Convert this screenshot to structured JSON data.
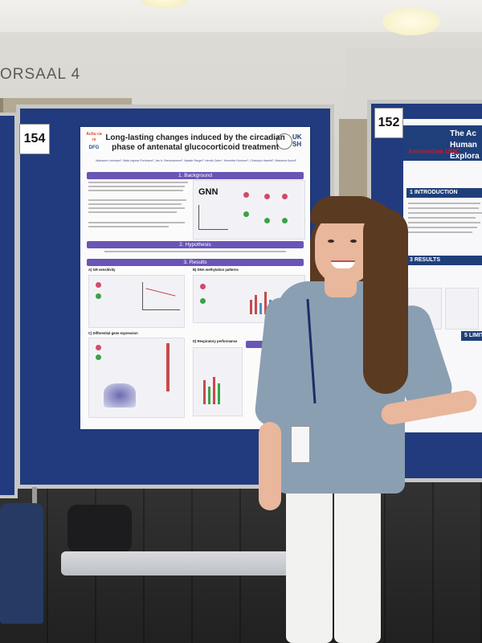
{
  "scene": {
    "room_sign": "ORSAAL 4"
  },
  "boards": {
    "main_number": "154",
    "right_number": "152"
  },
  "main_poster": {
    "logo_left": "Achu ca ro",
    "logo_dfg": "DFG",
    "logo_right": "UK SH",
    "title_line1": "Long-lasting changes induced by the circadian",
    "title_line2": "phase of antenatal glucocorticoid treatment",
    "authors": "Marianne Lehmann¹, Mats Ingmar Fortmann², Jan H. Bremnanmen³, Natalie Steger³, Henrik Oster⁴, Henriette Kirchner⁵, Christoph Haertel², Marianne Azzizi²",
    "sections": {
      "background": "1. Background",
      "hypothesis": "2. Hypothesis",
      "results": "3. Results",
      "conclusion": "4. Co"
    },
    "gnn_label": "GNN",
    "subsections": {
      "gr_sensitivity": "A) GR sensitivity",
      "dna_methylation": "B) DNA methylation patterns",
      "diff_gene": "C) Differential gene expression",
      "respiratory": "D) Respiratory performance"
    }
  },
  "right_poster": {
    "title_line1": "The Ac",
    "title_line2": "Human",
    "title_line3": "Explora",
    "institution": "Amsterdam UMC",
    "sections": {
      "introduction": "1 INTRODUCTION",
      "results": "3 RESULTS",
      "limitations": "5 LIMITA"
    }
  }
}
